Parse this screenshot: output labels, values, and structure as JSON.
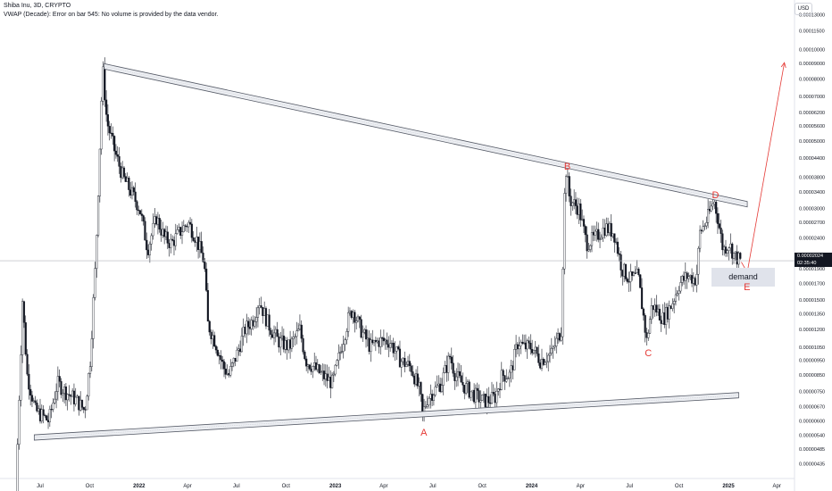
{
  "header": {
    "symbol_line": "Shiba Inu, 3D, CRYPTO",
    "indicator_note": "VWAP (Decade): Error on bar 545: No volume is provided by the data vendor."
  },
  "currency_button": "USD",
  "current_price": {
    "value": "0.00002024",
    "countdown": "02:35:40"
  },
  "chart_data": {
    "type": "candlestick",
    "title": "Shiba Inu, 3D, CRYPTO",
    "y_scale": "log",
    "ylim": [
      4.2e-06,
      0.000135
    ],
    "price_ticks": [
      "0.00013000",
      "0.00011500",
      "0.00010000",
      "0.00009000",
      "0.00008000",
      "0.00007000",
      "0.00006200",
      "0.00005600",
      "0.00005000",
      "0.00004400",
      "0.00003800",
      "0.00003400",
      "0.00003000",
      "0.00002700",
      "0.00002400",
      "0.00002100",
      "0.00001900",
      "0.00001700",
      "0.00001500",
      "0.00001350",
      "0.00001200",
      "0.00001050",
      "0.00000950",
      "0.00000850",
      "0.00000750",
      "0.00000670",
      "0.00000600",
      "0.00000540",
      "0.00000485",
      "0.00000435"
    ],
    "time_ticks": [
      "Jul",
      "Oct",
      "2022",
      "Apr",
      "Jul",
      "Oct",
      "2023",
      "Apr",
      "Jul",
      "Oct",
      "2024",
      "Apr",
      "Jul",
      "Oct",
      "2025",
      "Apr"
    ],
    "price_path": [
      [
        "2021-05-20",
        3.5e-06
      ],
      [
        "2021-06-01",
        1.5e-05
      ],
      [
        "2021-06-10",
        8.5e-06
      ],
      [
        "2021-06-25",
        6.5e-06
      ],
      [
        "2021-07-20",
        6e-06
      ],
      [
        "2021-08-05",
        8e-06
      ],
      [
        "2021-08-20",
        7.5e-06
      ],
      [
        "2021-09-10",
        7e-06
      ],
      [
        "2021-09-25",
        6.5e-06
      ],
      [
        "2021-10-05",
        9.5e-06
      ],
      [
        "2021-10-15",
        2e-05
      ],
      [
        "2021-10-25",
        6e-05
      ],
      [
        "2021-10-28",
        8.8e-05
      ],
      [
        "2021-11-05",
        5.8e-05
      ],
      [
        "2021-11-20",
        4.6e-05
      ],
      [
        "2021-12-05",
        3.8e-05
      ],
      [
        "2021-12-20",
        3.4e-05
      ],
      [
        "2022-01-05",
        3e-05
      ],
      [
        "2022-01-20",
        2.2e-05
      ],
      [
        "2022-02-05",
        2.8e-05
      ],
      [
        "2022-02-20",
        2.4e-05
      ],
      [
        "2022-03-05",
        2.3e-05
      ],
      [
        "2022-03-20",
        2.5e-05
      ],
      [
        "2022-04-05",
        2.7e-05
      ],
      [
        "2022-04-20",
        2.4e-05
      ],
      [
        "2022-05-05",
        2e-05
      ],
      [
        "2022-05-12",
        1.25e-05
      ],
      [
        "2022-05-25",
        1.1e-05
      ],
      [
        "2022-06-10",
        9e-06
      ],
      [
        "2022-06-20",
        8.5e-06
      ],
      [
        "2022-07-05",
        1e-05
      ],
      [
        "2022-07-20",
        1.2e-05
      ],
      [
        "2022-08-05",
        1.3e-05
      ],
      [
        "2022-08-15",
        1.5e-05
      ],
      [
        "2022-09-01",
        1.25e-05
      ],
      [
        "2022-09-20",
        1.1e-05
      ],
      [
        "2022-10-10",
        1.05e-05
      ],
      [
        "2022-10-30",
        1.2e-05
      ],
      [
        "2022-11-10",
        9.5e-06
      ],
      [
        "2022-11-25",
        9e-06
      ],
      [
        "2022-12-10",
        8.5e-06
      ],
      [
        "2022-12-30",
        8e-06
      ],
      [
        "2023-01-15",
        1.05e-05
      ],
      [
        "2023-01-28",
        1.3e-05
      ],
      [
        "2023-02-05",
        1.4e-05
      ],
      [
        "2023-02-20",
        1.2e-05
      ],
      [
        "2023-03-10",
        1.05e-05
      ],
      [
        "2023-03-25",
        1.1e-05
      ],
      [
        "2023-04-15",
        1.1e-05
      ],
      [
        "2023-05-05",
        9.5e-06
      ],
      [
        "2023-05-25",
        9e-06
      ],
      [
        "2023-06-10",
        7.5e-06
      ],
      [
        "2023-06-15",
        6.3e-06
      ],
      [
        "2023-06-25",
        7.2e-06
      ],
      [
        "2023-07-05",
        7.5e-06
      ],
      [
        "2023-07-20",
        8e-06
      ],
      [
        "2023-08-05",
        9.8e-06
      ],
      [
        "2023-08-15",
        8.5e-06
      ],
      [
        "2023-09-01",
        7.8e-06
      ],
      [
        "2023-09-20",
        7.3e-06
      ],
      [
        "2023-10-05",
        7e-06
      ],
      [
        "2023-10-15",
        7e-06
      ],
      [
        "2023-10-28",
        7.2e-06
      ],
      [
        "2023-11-10",
        8.5e-06
      ],
      [
        "2023-11-25",
        8.5e-06
      ],
      [
        "2023-12-10",
        1.1e-05
      ],
      [
        "2023-12-20",
        1.05e-05
      ],
      [
        "2024-01-05",
        1.05e-05
      ],
      [
        "2024-01-20",
        9.5e-06
      ],
      [
        "2024-02-10",
        1e-05
      ],
      [
        "2024-02-28",
        1.2e-05
      ],
      [
        "2024-03-05",
        3.3e-05
      ],
      [
        "2024-03-08",
        4e-05
      ],
      [
        "2024-03-15",
        3.2e-05
      ],
      [
        "2024-04-01",
        3e-05
      ],
      [
        "2024-04-15",
        2.3e-05
      ],
      [
        "2024-05-01",
        2.4e-05
      ],
      [
        "2024-05-20",
        2.6e-05
      ],
      [
        "2024-06-05",
        2.5e-05
      ],
      [
        "2024-06-20",
        1.9e-05
      ],
      [
        "2024-07-05",
        1.75e-05
      ],
      [
        "2024-07-20",
        1.8e-05
      ],
      [
        "2024-08-05",
        1.1e-05
      ],
      [
        "2024-08-15",
        1.45e-05
      ],
      [
        "2024-09-05",
        1.3e-05
      ],
      [
        "2024-09-20",
        1.45e-05
      ],
      [
        "2024-10-05",
        1.7e-05
      ],
      [
        "2024-10-20",
        1.8e-05
      ],
      [
        "2024-11-05",
        1.75e-05
      ],
      [
        "2024-11-12",
        2.5e-05
      ],
      [
        "2024-11-25",
        2.75e-05
      ],
      [
        "2024-12-08",
        3.2e-05
      ],
      [
        "2024-12-15",
        2.8e-05
      ],
      [
        "2024-12-25",
        2.2e-05
      ],
      [
        "2025-01-05",
        2.3e-05
      ],
      [
        "2025-01-15",
        2.1e-05
      ],
      [
        "2025-01-25",
        2.02e-05
      ]
    ],
    "trendlines": [
      {
        "name": "upper",
        "from": [
          "2021-10-28",
          8.8e-05
        ],
        "to": [
          "2025-02-05",
          3.1e-05
        ]
      },
      {
        "name": "lower",
        "from": [
          "2021-06-20",
          5.3e-06
        ],
        "to": [
          "2025-01-20",
          7.3e-06
        ]
      }
    ],
    "projection": [
      [
        "2025-01-25",
        2e-05
      ],
      [
        "2025-02-05",
        1.85e-05
      ],
      [
        "2025-04-15",
        9.05e-05
      ]
    ],
    "annotations": [
      {
        "label": "A",
        "x": "2023-06-15",
        "y": 5.5e-06
      },
      {
        "label": "B",
        "x": "2024-03-08",
        "y": 4.1e-05
      },
      {
        "label": "C",
        "x": "2024-08-05",
        "y": 1e-05
      },
      {
        "label": "D",
        "x": "2024-12-08",
        "y": 3.3e-05
      },
      {
        "label": "E",
        "x": "2025-02-05",
        "y": 1.65e-05
      }
    ],
    "zones": [
      {
        "label": "demand"
      }
    ]
  }
}
